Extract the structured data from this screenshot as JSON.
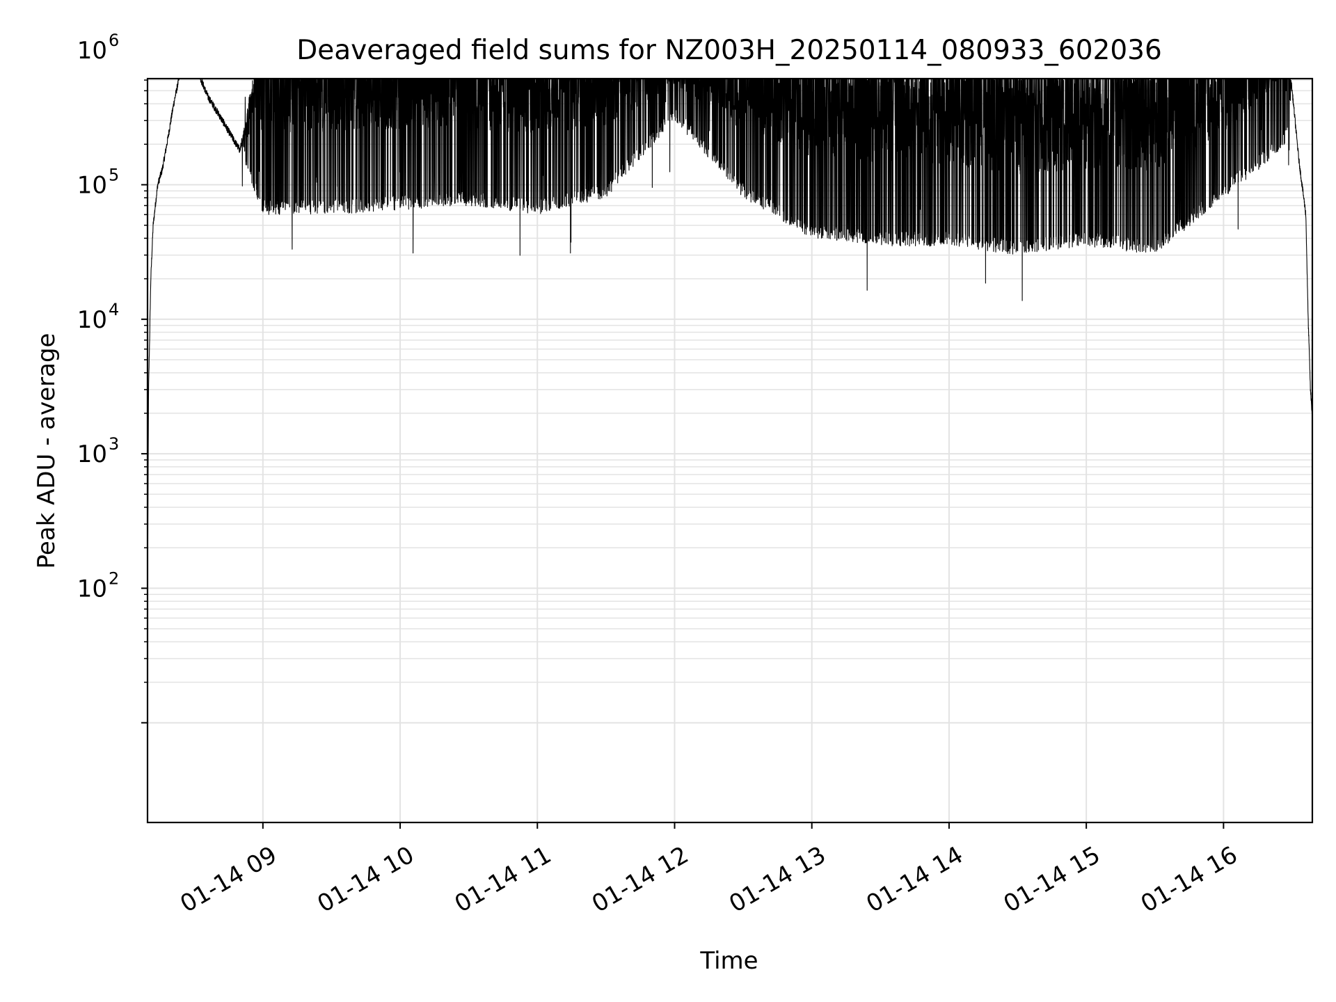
{
  "chart_data": {
    "type": "line",
    "title": "Deaveraged field sums for NZ003H_20250114_080933_602036",
    "xlabel": "Time",
    "ylabel": "Peak ADU - average",
    "yscale": "log",
    "ylim": [
      17,
      580000
    ],
    "xlim": [
      "2025-01-14 08:09:33",
      "2025-01-14 16:39:00"
    ],
    "x_tick_labels": [
      "01-14 09",
      "01-14 10",
      "01-14 11",
      "01-14 12",
      "01-14 13",
      "01-14 14",
      "01-14 15",
      "01-14 16"
    ],
    "y_tick_labels": [
      {
        "base": "10",
        "exp": "2"
      },
      {
        "base": "10",
        "exp": "3"
      },
      {
        "base": "10",
        "exp": "4"
      },
      {
        "base": "10",
        "exp": "5"
      },
      {
        "base": "10",
        "exp": "6"
      }
    ],
    "grid": true,
    "line_color": "#000000",
    "grid_color": "#e3e3e3",
    "series": [
      {
        "x": [
          "08:09:33",
          "08:10",
          "08:11",
          "08:12",
          "08:14",
          "08:16",
          "08:18",
          "08:21",
          "08:24",
          "08:27",
          "08:30",
          "08:33",
          "08:36",
          "08:40",
          "08:45",
          "08:50",
          "09:00",
          "09:30",
          "10:00",
          "10:30",
          "11:00",
          "11:30",
          "12:00",
          "12:30",
          "13:00",
          "13:30",
          "14:00",
          "14:30",
          "15:00",
          "15:30",
          "16:00",
          "16:20",
          "16:27",
          "16:30",
          "16:33",
          "16:36",
          "16:37",
          "16:38",
          "16:39"
        ],
        "envelope_high": [
          70,
          3000,
          20000,
          50000,
          100000,
          130000,
          200000,
          400000,
          700000,
          900000,
          900000,
          600000,
          450000,
          350000,
          250000,
          180000,
          1400000,
          1400000,
          1400000,
          1300000,
          1300000,
          1200000,
          1200000,
          1000000,
          900000,
          850000,
          750000,
          650000,
          650000,
          700000,
          1000000,
          2000000,
          1500000,
          500000,
          150000,
          60000,
          10000,
          3000,
          1700
        ],
        "envelope_low": [
          70,
          3000,
          20000,
          50000,
          100000,
          130000,
          200000,
          400000,
          700000,
          900000,
          900000,
          600000,
          450000,
          350000,
          250000,
          180000,
          60000,
          60000,
          65000,
          70000,
          60000,
          80000,
          300000,
          80000,
          40000,
          35000,
          35000,
          30000,
          35000,
          30000,
          80000,
          150000,
          200000,
          500000,
          150000,
          60000,
          10000,
          3000,
          1700
        ]
      }
    ]
  }
}
